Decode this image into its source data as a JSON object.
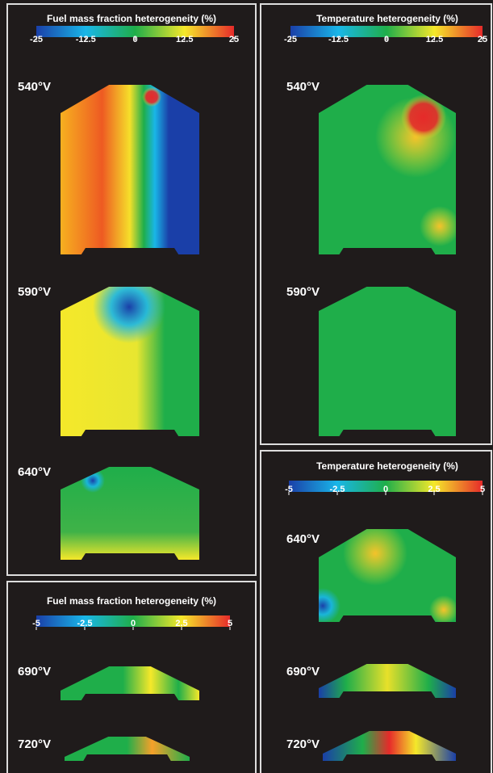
{
  "panels": [
    {
      "title": "Fuel mass fraction heterogeneity (%)",
      "colorbar_ticks": [
        -25,
        -12.5,
        0,
        12.5,
        25
      ],
      "frames": [
        {
          "label": "540°V"
        },
        {
          "label": "590°V"
        },
        {
          "label": "640°V"
        }
      ]
    },
    {
      "title": "Fuel mass fraction heterogeneity (%)",
      "colorbar_ticks": [
        -5,
        -2.5,
        0,
        2.5,
        5
      ],
      "frames": [
        {
          "label": "690°V"
        },
        {
          "label": "720°V"
        }
      ]
    },
    {
      "title": "Temperature heterogeneity (%)",
      "colorbar_ticks": [
        -25,
        -12.5,
        0,
        12.5,
        25
      ],
      "frames": [
        {
          "label": "540°V"
        },
        {
          "label": "590°V"
        }
      ]
    },
    {
      "title": "Temperature heterogeneity (%)",
      "colorbar_ticks": [
        -5,
        -2.5,
        0,
        2.5,
        5
      ],
      "frames": [
        {
          "label": "640°V"
        },
        {
          "label": "690°V"
        },
        {
          "label": "720°V"
        }
      ]
    }
  ]
}
